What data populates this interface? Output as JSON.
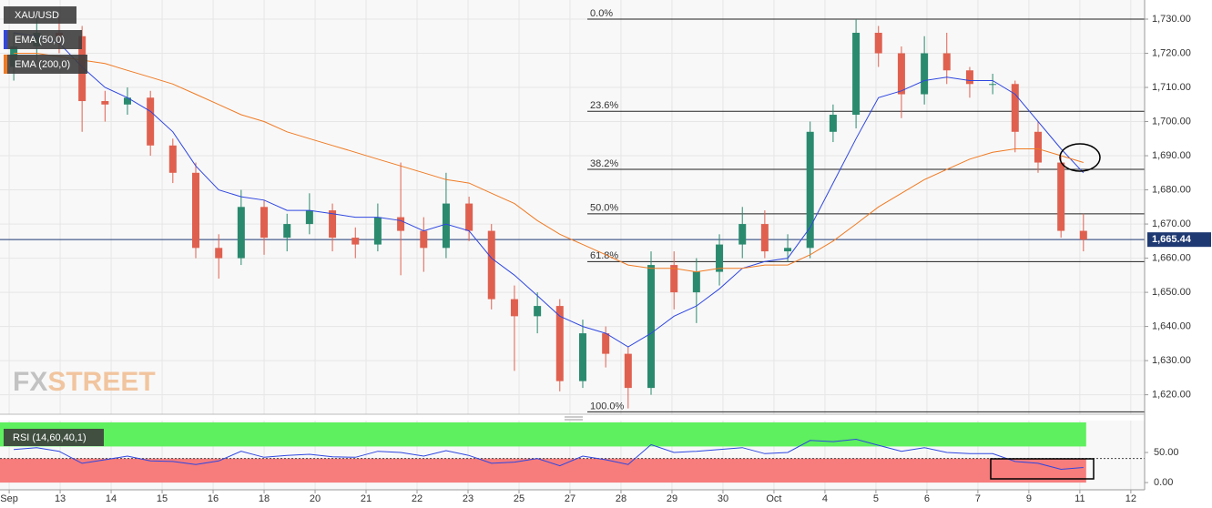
{
  "chart_data": {
    "type": "candlestick",
    "legend": [
      "XAU/USD",
      "EMA (50,0)",
      "EMA (200,0)"
    ],
    "watermark": [
      "FX",
      "STREET"
    ],
    "xlim": [
      -0.18,
      22.27
    ],
    "xticks": [
      {
        "value": 0,
        "label": "Sep"
      },
      {
        "value": 1,
        "label": "13"
      },
      {
        "value": 2,
        "label": "14"
      },
      {
        "value": 3,
        "label": "15"
      },
      {
        "value": 4,
        "label": "16"
      },
      {
        "value": 5,
        "label": "18"
      },
      {
        "value": 6,
        "label": "20"
      },
      {
        "value": 7,
        "label": "21"
      },
      {
        "value": 8,
        "label": "22"
      },
      {
        "value": 9,
        "label": "23"
      },
      {
        "value": 10,
        "label": "25"
      },
      {
        "value": 11,
        "label": "27"
      },
      {
        "value": 12,
        "label": "28"
      },
      {
        "value": 13,
        "label": "29"
      },
      {
        "value": 14,
        "label": "30"
      },
      {
        "value": 15,
        "label": "Oct"
      },
      {
        "value": 16,
        "label": "4"
      },
      {
        "value": 17,
        "label": "5"
      },
      {
        "value": 18,
        "label": "6"
      },
      {
        "value": 19,
        "label": "7"
      },
      {
        "value": 20,
        "label": "9"
      },
      {
        "value": 21,
        "label": "11"
      },
      {
        "value": 22,
        "label": "12"
      }
    ],
    "ylim": [
      1614.3,
      1735.6
    ],
    "yticks": [
      {
        "value": 1620,
        "label": "1,620.00"
      },
      {
        "value": 1630,
        "label": "1,630.00"
      },
      {
        "value": 1640,
        "label": "1,640.00"
      },
      {
        "value": 1650,
        "label": "1,650.00"
      },
      {
        "value": 1660,
        "label": "1,660.00"
      },
      {
        "value": 1670,
        "label": "1,670.00"
      },
      {
        "value": 1680,
        "label": "1,680.00"
      },
      {
        "value": 1690,
        "label": "1,690.00"
      },
      {
        "value": 1700,
        "label": "1,700.00"
      },
      {
        "value": 1710,
        "label": "1,710.00"
      },
      {
        "value": 1720,
        "label": "1,720.00"
      },
      {
        "value": 1730,
        "label": "1,730.00"
      }
    ],
    "grid": true,
    "up_color": "#2a8a6e",
    "down_color": "#e0604f",
    "x": [
      0.09,
      0.54,
      0.98,
      1.43,
      1.88,
      2.32,
      2.77,
      3.21,
      3.66,
      4.11,
      4.55,
      5.0,
      5.45,
      5.89,
      6.34,
      6.79,
      7.23,
      7.68,
      8.13,
      8.57,
      9.02,
      9.46,
      9.91,
      10.36,
      10.8,
      11.25,
      11.7,
      12.14,
      12.59,
      13.04,
      13.48,
      13.93,
      14.38,
      14.82,
      15.27,
      15.71,
      16.16,
      16.61,
      17.05,
      17.5,
      17.95,
      18.39,
      18.84,
      19.29,
      19.73,
      20.18,
      20.63,
      21.07
    ],
    "open": [
      1716,
      1722,
      1726,
      1725,
      1706,
      1705,
      1707,
      1693,
      1685,
      1663,
      1660,
      1675,
      1666,
      1670,
      1674,
      1666,
      1664,
      1672,
      1668,
      1663,
      1676,
      1668,
      1648,
      1643,
      1646,
      1624,
      1638,
      1632,
      1622,
      1658,
      1650,
      1656,
      1664,
      1670,
      1662,
      1663,
      1697,
      1702,
      1726,
      1720,
      1708,
      1720,
      1715,
      1711,
      1711,
      1697,
      1688,
      1668
    ],
    "high": [
      1726,
      1731,
      1731,
      1728,
      1709,
      1710,
      1709,
      1695,
      1688,
      1667,
      1680,
      1677,
      1673,
      1679,
      1676,
      1669,
      1676,
      1688,
      1672,
      1685,
      1678,
      1670,
      1652,
      1650,
      1648,
      1642,
      1640,
      1634,
      1662,
      1662,
      1660,
      1667,
      1675,
      1674,
      1667,
      1700,
      1705,
      1730,
      1728,
      1722,
      1725,
      1726,
      1716,
      1714,
      1712,
      1700,
      1690,
      1673
    ],
    "low": [
      1712,
      1718,
      1720,
      1697,
      1700,
      1702,
      1690,
      1682,
      1660,
      1654,
      1658,
      1661,
      1662,
      1667,
      1662,
      1660,
      1662,
      1655,
      1656,
      1660,
      1665,
      1645,
      1627,
      1638,
      1621,
      1622,
      1628,
      1616,
      1620,
      1645,
      1641,
      1652,
      1660,
      1660,
      1659,
      1660,
      1694,
      1698,
      1716,
      1701,
      1705,
      1711,
      1707,
      1708,
      1691,
      1685,
      1666,
      1662
    ],
    "close": [
      1722,
      1726,
      1725,
      1706,
      1705,
      1707,
      1693,
      1685,
      1663,
      1660,
      1675,
      1666,
      1670,
      1674,
      1666,
      1664,
      1672,
      1668,
      1663,
      1676,
      1668,
      1648,
      1643,
      1646,
      1624,
      1638,
      1632,
      1622,
      1658,
      1650,
      1656,
      1664,
      1670,
      1662,
      1663,
      1697,
      1702,
      1726,
      1720,
      1708,
      1720,
      1715,
      1711,
      1711,
      1697,
      1688,
      1668,
      1665.44
    ],
    "series": [
      {
        "name": "EMA (50,0)",
        "color": "#2f47e0",
        "values": [
          1726,
          1725,
          1723,
          1716,
          1710,
          1707,
          1703,
          1697,
          1687,
          1680,
          1678,
          1677,
          1674,
          1674,
          1673,
          1672,
          1672,
          1671,
          1668,
          1670,
          1668,
          1660,
          1655,
          1649,
          1643,
          1640,
          1638,
          1634,
          1638,
          1643,
          1646,
          1651,
          1657,
          1659,
          1660,
          1669,
          1682,
          1695,
          1707,
          1709,
          1712,
          1713,
          1712,
          1712,
          1708,
          1700,
          1692,
          1685
        ]
      },
      {
        "name": "EMA (200,0)",
        "color": "#f07a22",
        "values": [
          1720,
          1720,
          1719,
          1718,
          1717,
          1715,
          1713,
          1711,
          1708,
          1705,
          1702,
          1700,
          1697,
          1695,
          1693,
          1691,
          1689,
          1687,
          1685,
          1683,
          1682,
          1679,
          1676,
          1671,
          1667,
          1664,
          1661,
          1658,
          1657,
          1657,
          1656,
          1657,
          1657,
          1658,
          1658,
          1661,
          1665,
          1670,
          1675,
          1679,
          1683,
          1686,
          1689,
          1691,
          1692,
          1692,
          1690,
          1688
        ]
      }
    ],
    "last_price": {
      "value": 1665.44,
      "label": "1,665.44",
      "color": "#1f3a73"
    },
    "fib": {
      "start": 11.34,
      "levels": [
        {
          "label": "0.0%",
          "price": 1730
        },
        {
          "label": "23.6%",
          "price": 1703
        },
        {
          "label": "38.2%",
          "price": 1686
        },
        {
          "label": "50.0%",
          "price": 1673
        },
        {
          "label": "61.8%",
          "price": 1659
        },
        {
          "label": "100.0%",
          "price": 1615
        }
      ]
    },
    "rsi": {
      "title": "RSI (14,60,40,1)",
      "upper": 60,
      "lower": 40,
      "color": "#2f47e0",
      "ylim": [
        -12,
        103
      ],
      "yticks": [
        {
          "value": 50,
          "label": "50.00"
        },
        {
          "value": 0,
          "label": "0.00"
        }
      ],
      "values": [
        55,
        58,
        52,
        32,
        38,
        44,
        36,
        35,
        30,
        36,
        52,
        42,
        45,
        47,
        43,
        42,
        52,
        50,
        44,
        53,
        45,
        32,
        34,
        40,
        28,
        44,
        38,
        30,
        63,
        50,
        52,
        55,
        58,
        48,
        50,
        70,
        68,
        72,
        62,
        52,
        58,
        50,
        48,
        48,
        35,
        32,
        22,
        25
      ]
    }
  }
}
